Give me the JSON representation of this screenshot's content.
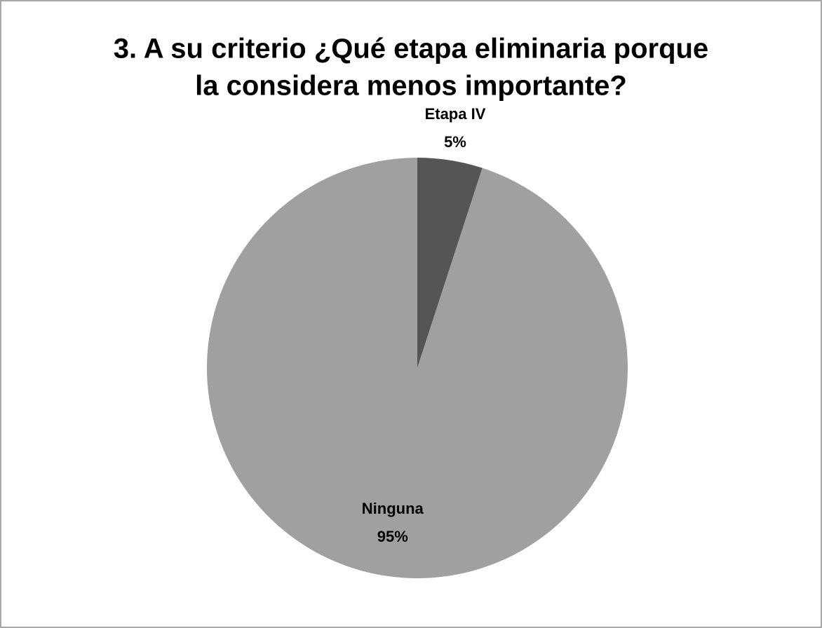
{
  "chart_data": {
    "type": "pie",
    "title": [
      "3. A su criterio ¿Qué etapa eliminaria porque",
      "la considera menos importante?"
    ],
    "categories": [
      "Etapa IV",
      "Ninguna"
    ],
    "values": [
      5,
      95
    ],
    "value_labels": [
      "5%",
      "95%"
    ],
    "colors": [
      "#555555",
      "#a0a0a0"
    ]
  }
}
